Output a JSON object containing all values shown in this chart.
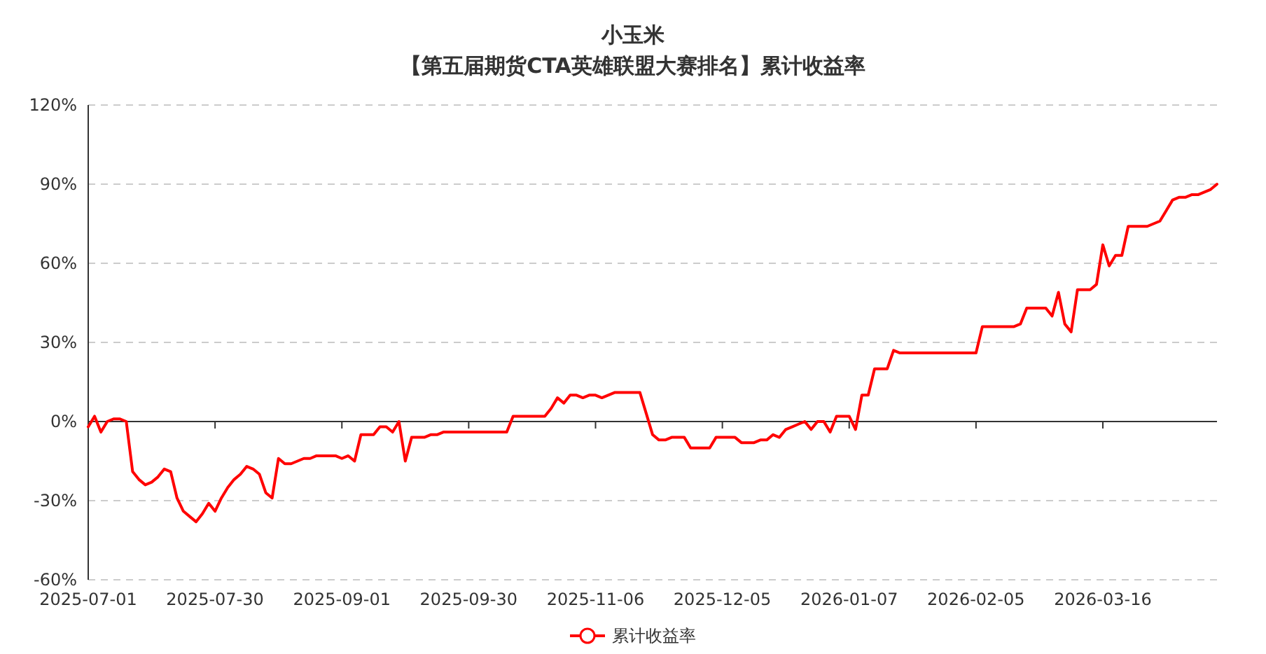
{
  "chart_data": {
    "type": "line",
    "title": "小玉米",
    "subtitle": "【第五届期货CTA英雄联盟大赛排名】累计收益率",
    "categories": [
      "2025-07-01",
      null,
      null,
      null,
      null,
      null,
      null,
      null,
      null,
      null,
      null,
      null,
      null,
      null,
      null,
      null,
      null,
      null,
      null,
      null,
      "2025-07-30",
      null,
      null,
      null,
      null,
      null,
      null,
      null,
      null,
      null,
      null,
      null,
      null,
      null,
      null,
      null,
      null,
      null,
      null,
      null,
      "2025-09-01",
      null,
      null,
      null,
      null,
      null,
      null,
      null,
      null,
      null,
      null,
      null,
      null,
      null,
      null,
      null,
      null,
      null,
      null,
      null,
      "2025-09-30",
      null,
      null,
      null,
      null,
      null,
      null,
      null,
      null,
      null,
      null,
      null,
      null,
      null,
      null,
      null,
      null,
      null,
      null,
      null,
      "2025-11-06",
      null,
      null,
      null,
      null,
      null,
      null,
      null,
      null,
      null,
      null,
      null,
      null,
      null,
      null,
      null,
      null,
      null,
      null,
      null,
      "2025-12-05",
      null,
      null,
      null,
      null,
      null,
      null,
      null,
      null,
      null,
      null,
      null,
      null,
      null,
      null,
      null,
      null,
      null,
      null,
      null,
      "2026-01-07",
      null,
      null,
      null,
      null,
      null,
      null,
      null,
      null,
      null,
      null,
      null,
      null,
      null,
      null,
      null,
      null,
      null,
      null,
      null,
      "2026-02-05",
      null,
      null,
      null,
      null,
      null,
      null,
      null,
      null,
      null,
      null,
      null,
      null,
      null,
      null,
      null,
      null,
      null,
      null,
      null,
      "2026-03-16",
      null,
      null,
      null,
      null,
      null,
      null,
      null,
      null,
      null,
      null,
      null,
      null,
      null,
      null,
      null,
      null,
      null,
      null
    ],
    "series": [
      {
        "name": "累计收益率",
        "color": "#ff0000",
        "values": [
          -2,
          2,
          -4,
          0,
          1,
          1,
          0,
          -19,
          -22,
          -24,
          -23,
          -21,
          -18,
          -19,
          -29,
          -34,
          -36,
          -38,
          -35,
          -31,
          -34,
          -29,
          -25,
          -22,
          -20,
          -17,
          -18,
          -20,
          -27,
          -29,
          -14,
          -16,
          -16,
          -15,
          -14,
          -14,
          -13,
          -13,
          -13,
          -13,
          -14,
          -13,
          -15,
          -5,
          -5,
          -5,
          -2,
          -2,
          -4,
          0,
          -15,
          -6,
          -6,
          -6,
          -5,
          -5,
          -4,
          -4,
          -4,
          -4,
          -4,
          -4,
          -4,
          -4,
          -4,
          -4,
          -4,
          2,
          2,
          2,
          2,
          2,
          2,
          5,
          9,
          7,
          10,
          10,
          9,
          10,
          10,
          9,
          10,
          11,
          11,
          11,
          11,
          11,
          3,
          -5,
          -7,
          -7,
          -6,
          -6,
          -6,
          -10,
          -10,
          -10,
          -10,
          -6,
          -6,
          -6,
          -6,
          -8,
          -8,
          -8,
          -7,
          -7,
          -5,
          -6,
          -3,
          -2,
          -1,
          0,
          -3,
          0,
          0,
          -4,
          2,
          2,
          2,
          -3,
          10,
          10,
          20,
          20,
          20,
          27,
          26,
          26,
          26,
          26,
          26,
          26,
          26,
          26,
          26,
          26,
          26,
          26,
          26,
          36,
          36,
          36,
          36,
          36,
          36,
          37,
          43,
          43,
          43,
          43,
          40,
          49,
          37,
          34,
          50,
          50,
          50,
          52,
          67,
          59,
          63,
          63,
          74,
          74,
          74,
          74,
          75,
          76,
          80,
          84,
          85,
          85,
          86,
          86,
          87,
          88,
          90
        ]
      }
    ],
    "ylim": [
      -60,
      120
    ],
    "yticks": [
      {
        "value": -60,
        "label": "-60%"
      },
      {
        "value": -30,
        "label": "-30%"
      },
      {
        "value": 0,
        "label": "0%"
      },
      {
        "value": 30,
        "label": "30%"
      },
      {
        "value": 60,
        "label": "60%"
      },
      {
        "value": 90,
        "label": "90%"
      },
      {
        "value": 120,
        "label": "120%"
      }
    ],
    "grid": "y",
    "legend": "bottom",
    "line_style": "solid"
  }
}
